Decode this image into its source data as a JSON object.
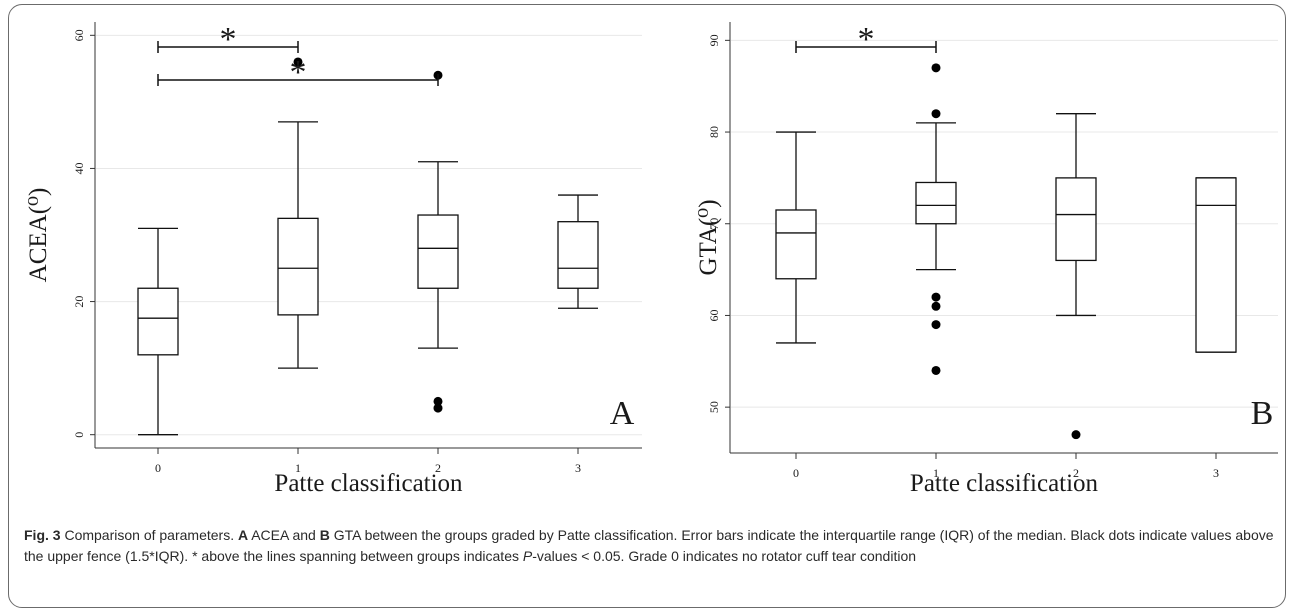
{
  "chart_data": [
    {
      "panel_letter": "A",
      "type": "boxplot",
      "xlabel": "Patte classification",
      "ylabel": "ACEA(⁰)",
      "categories": [
        "0",
        "1",
        "2",
        "3"
      ],
      "ylim": [
        -2,
        62
      ],
      "yticks": [
        0,
        20,
        40,
        60
      ],
      "grid": true,
      "boxes": [
        {
          "category": "0",
          "whisker_low": 0,
          "q1": 12,
          "median": 17.5,
          "q3": 22,
          "whisker_high": 31,
          "outliers": []
        },
        {
          "category": "1",
          "whisker_low": 10,
          "q1": 18,
          "median": 25,
          "q3": 32.5,
          "whisker_high": 47,
          "outliers": [
            56
          ]
        },
        {
          "category": "2",
          "whisker_low": 13,
          "q1": 22,
          "median": 28,
          "q3": 33,
          "whisker_high": 41,
          "outliers": [
            54,
            5,
            4
          ]
        },
        {
          "category": "3",
          "whisker_low": 19,
          "q1": 22,
          "median": 25,
          "q3": 32,
          "whisker_high": 36,
          "outliers": []
        }
      ],
      "significance": [
        {
          "from": "0",
          "to": "1",
          "label": "*"
        },
        {
          "from": "0",
          "to": "2",
          "label": "*"
        }
      ]
    },
    {
      "panel_letter": "B",
      "type": "boxplot",
      "xlabel": "Patte classification",
      "ylabel": "GTA(⁰)",
      "categories": [
        "0",
        "1",
        "2",
        "3"
      ],
      "ylim": [
        45,
        92
      ],
      "yticks": [
        50,
        60,
        70,
        80,
        90
      ],
      "grid": true,
      "boxes": [
        {
          "category": "0",
          "whisker_low": 57,
          "q1": 64,
          "median": 69,
          "q3": 71.5,
          "whisker_high": 80,
          "outliers": []
        },
        {
          "category": "1",
          "whisker_low": 65,
          "q1": 70,
          "median": 72,
          "q3": 74.5,
          "whisker_high": 81,
          "outliers": [
            87,
            82,
            62,
            61,
            59,
            54
          ]
        },
        {
          "category": "2",
          "whisker_low": 60,
          "q1": 66,
          "median": 71,
          "q3": 75,
          "whisker_high": 82,
          "outliers": [
            47
          ]
        },
        {
          "category": "3",
          "whisker_low": 56,
          "q1": 56,
          "median": 72,
          "q3": 75,
          "whisker_high": 75,
          "outliers": []
        }
      ],
      "significance": [
        {
          "from": "0",
          "to": "1",
          "label": "*"
        }
      ]
    }
  ],
  "caption": {
    "fig_label": "Fig. 3",
    "intro": " Comparison of parameters. ",
    "a_label": "A",
    "a_text": " ACEA and ",
    "b_label": "B",
    "b_text": " GTA between the groups graded by Patte classification. Error bars indicate the interquartile range (IQR) of the median. Black dots indicate values above the upper fence (1.5*IQR). * above the lines spanning between groups indicates ",
    "p_italic": "P",
    "p_rest": "-values < 0.05. Grade 0 indicates no rotator cuff tear condition"
  }
}
